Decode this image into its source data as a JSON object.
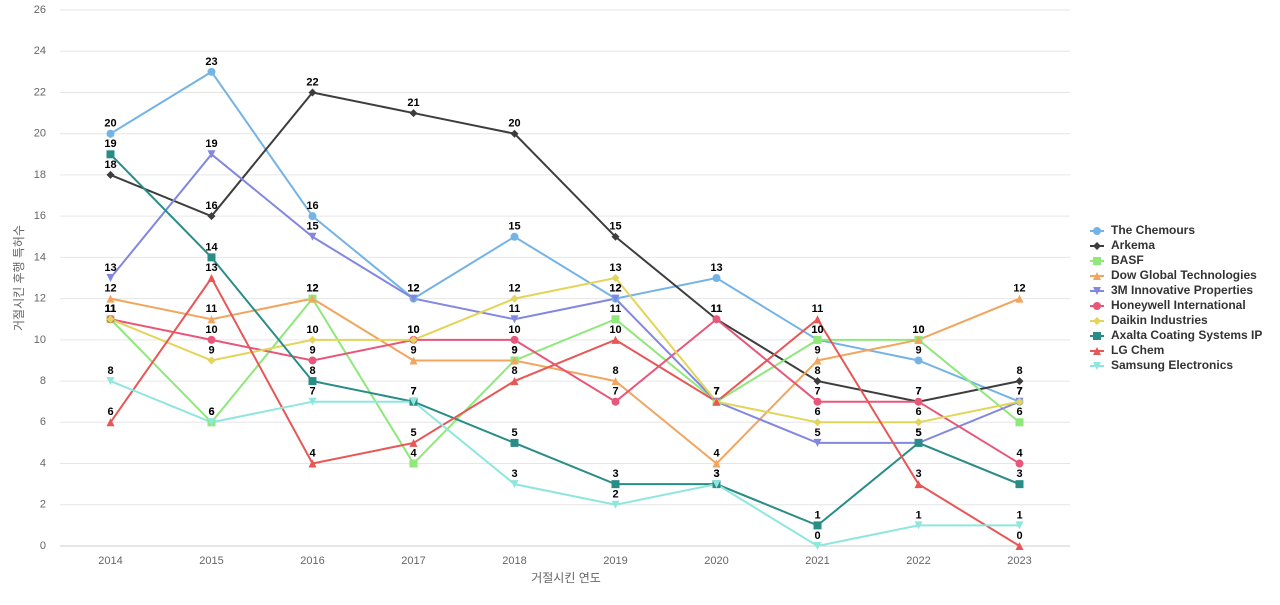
{
  "chart_data": {
    "type": "line",
    "x_label": "거절시킨 연도",
    "y_label": "거절시킨 후행 특허수",
    "categories": [
      "2014",
      "2015",
      "2016",
      "2017",
      "2018",
      "2019",
      "2020",
      "2021",
      "2022",
      "2023"
    ],
    "ylim": [
      0,
      26
    ],
    "yticks": [
      0,
      2,
      4,
      6,
      8,
      10,
      12,
      14,
      16,
      18,
      20,
      22,
      24,
      26
    ],
    "grid": true,
    "legend": "right",
    "series": [
      {
        "name": "The Chemours",
        "color": "#74b3e6",
        "marker": "circle",
        "values": [
          20,
          23,
          16,
          12,
          15,
          12,
          13,
          10,
          9,
          7
        ]
      },
      {
        "name": "Arkema",
        "color": "#3d3d3d",
        "marker": "diamond",
        "values": [
          18,
          16,
          22,
          21,
          20,
          15,
          11,
          8,
          7,
          8
        ]
      },
      {
        "name": "BASF",
        "color": "#8ee87a",
        "marker": "square",
        "values": [
          11,
          6,
          12,
          4,
          9,
          11,
          7,
          10,
          10,
          6
        ]
      },
      {
        "name": "Dow Global Technologies",
        "color": "#f2a55e",
        "marker": "triangle",
        "values": [
          12,
          11,
          12,
          9,
          9,
          8,
          4,
          9,
          10,
          12
        ]
      },
      {
        "name": "3M Innovative Properties",
        "color": "#8287e0",
        "marker": "triangle-down",
        "values": [
          13,
          19,
          15,
          12,
          11,
          12,
          7,
          5,
          5,
          7
        ]
      },
      {
        "name": "Honeywell International",
        "color": "#e8567a",
        "marker": "circle",
        "values": [
          11,
          10,
          9,
          10,
          10,
          7,
          11,
          7,
          7,
          4
        ]
      },
      {
        "name": "Daikin Industries",
        "color": "#e3d45a",
        "marker": "diamond",
        "values": [
          11,
          9,
          10,
          10,
          12,
          13,
          7,
          6,
          6,
          7
        ]
      },
      {
        "name": "Axalta Coating Systems IP",
        "color": "#2a8c86",
        "marker": "square",
        "values": [
          19,
          14,
          8,
          7,
          5,
          3,
          3,
          1,
          5,
          3
        ]
      },
      {
        "name": "LG Chem",
        "color": "#e85656",
        "marker": "triangle",
        "values": [
          6,
          13,
          4,
          5,
          8,
          10,
          7,
          11,
          3,
          0
        ]
      },
      {
        "name": "Samsung Electronics",
        "color": "#8ee6de",
        "marker": "triangle-down",
        "values": [
          8,
          6,
          7,
          7,
          3,
          2,
          3,
          0,
          1,
          1
        ]
      }
    ]
  }
}
